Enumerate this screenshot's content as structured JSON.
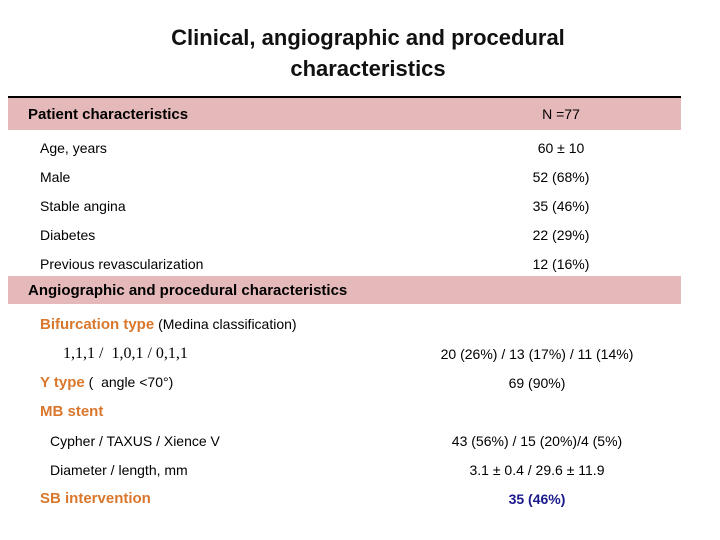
{
  "slide": {
    "title_line1": "Clinical, angiographic and procedural",
    "title_line2": "characteristics",
    "colors": {
      "band_pink": "#e5b8b9",
      "accent_orange": "#d9772d",
      "highlight_navy": "#19198c",
      "rule_black": "#000000"
    },
    "patient_section": {
      "header": "Patient characteristics",
      "n_label": "N =77",
      "rows": [
        {
          "label": "Age, years",
          "value": "60 ± 10"
        },
        {
          "label": "Male",
          "value": "52 (68%)"
        },
        {
          "label": "Stable angina",
          "value": "35 (46%)"
        },
        {
          "label": "Diabetes",
          "value": "22 (29%)"
        },
        {
          "label": "Previous revascularization",
          "value": "12 (16%)"
        }
      ]
    },
    "angio_section": {
      "header": "Angiographic and procedural characteristics",
      "rows": [
        {
          "label_accent": "Bifurcation type",
          "label_rest": " (Medina classification)",
          "value": ""
        },
        {
          "label": "1,1,1 /  1,0,1 / 0,1,1",
          "value": "20 (26%) / 13 (17%) / 11 (14%)"
        },
        {
          "label_accent": "Y type",
          "label_rest": " (  angle <70°)",
          "value": "69 (90%)"
        },
        {
          "label_accent": "MB stent",
          "label_rest": "",
          "value": ""
        },
        {
          "label": "Cypher / TAXUS / Xience V",
          "value": "43 (56%) / 15 (20%)/4 (5%)"
        },
        {
          "label": "Diameter / length, mm",
          "value": "3.1 ± 0.4 / 29.6 ± 11.9"
        },
        {
          "label_accent": "SB intervention",
          "label_rest": "",
          "value": "35 (46%)"
        }
      ]
    }
  }
}
